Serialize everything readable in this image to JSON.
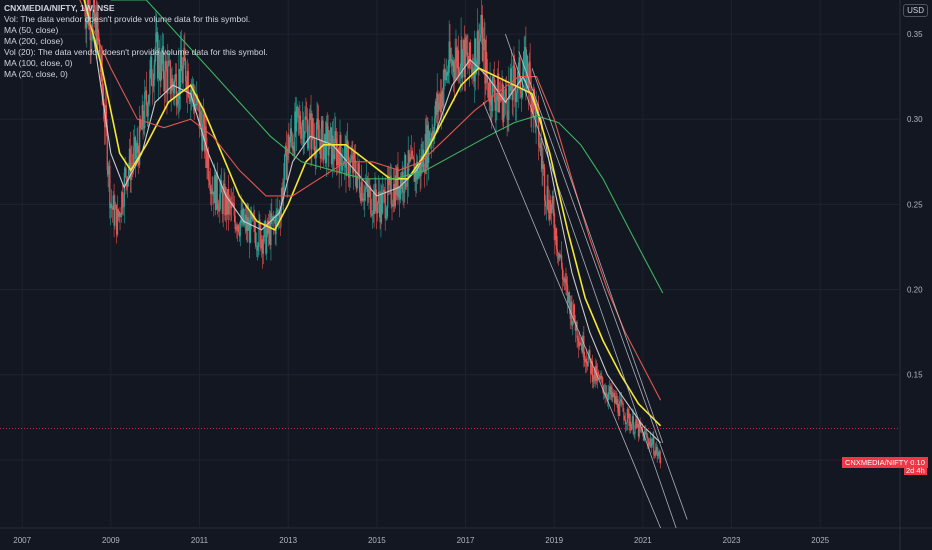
{
  "legend": {
    "symbol": "CNXMEDIA/NIFTY, 1W, NSE",
    "lines": [
      "Vol: The data vendor doesn't provide volume data for this symbol.",
      "MA (50, close)",
      "MA (200, close)",
      "Vol (20): The data vendor doesn't provide volume data for this symbol.",
      "MA (100, close, 0)",
      "MA (20, close, 0)"
    ]
  },
  "currency": "USD",
  "price_tag": {
    "label": "CNXMEDIA/NIFTY",
    "value": "0.10",
    "countdown": "2d 4h"
  },
  "colors": {
    "background": "#131722",
    "grid": "#1f2330",
    "axis_text": "#b2b5be",
    "candle_up": "#26a69a",
    "candle_down": "#ef5350",
    "ma20": "#c9c9c9",
    "ma50": "#f5e733",
    "ma100": "#e0574f",
    "ma200": "#3fb25f",
    "channel": "#d1d4dc",
    "price_line": "#f23645"
  },
  "chart_data": {
    "type": "candlestick",
    "symbol": "CNXMEDIA/NIFTY",
    "interval": "1W",
    "exchange": "NSE",
    "x_ticks": [
      "2007",
      "2009",
      "2011",
      "2013",
      "2015",
      "2017",
      "2019",
      "2021",
      "2023",
      "2025"
    ],
    "y_ticks": [
      "0.35",
      "0.30",
      "0.25",
      "0.20",
      "0.15",
      "0.10"
    ],
    "xlim": [
      2006.5,
      2026.8
    ],
    "ylim": [
      0.06,
      0.37
    ],
    "y_axis_position": "right",
    "grid": true,
    "last_price": 0.1,
    "close_path": [
      [
        2008.4,
        0.37
      ],
      [
        2008.7,
        0.35
      ],
      [
        2008.9,
        0.29
      ],
      [
        2009.0,
        0.25
      ],
      [
        2009.15,
        0.24
      ],
      [
        2009.35,
        0.27
      ],
      [
        2009.6,
        0.28
      ],
      [
        2009.8,
        0.31
      ],
      [
        2010.0,
        0.34
      ],
      [
        2010.15,
        0.33
      ],
      [
        2010.4,
        0.32
      ],
      [
        2010.7,
        0.33
      ],
      [
        2010.9,
        0.31
      ],
      [
        2011.1,
        0.29
      ],
      [
        2011.3,
        0.26
      ],
      [
        2011.6,
        0.25
      ],
      [
        2011.9,
        0.24
      ],
      [
        2012.2,
        0.235
      ],
      [
        2012.5,
        0.23
      ],
      [
        2012.8,
        0.245
      ],
      [
        2013.0,
        0.285
      ],
      [
        2013.3,
        0.3
      ],
      [
        2013.6,
        0.29
      ],
      [
        2013.9,
        0.285
      ],
      [
        2014.2,
        0.28
      ],
      [
        2014.5,
        0.27
      ],
      [
        2014.8,
        0.255
      ],
      [
        2015.1,
        0.25
      ],
      [
        2015.4,
        0.26
      ],
      [
        2015.7,
        0.27
      ],
      [
        2015.95,
        0.27
      ],
      [
        2016.3,
        0.3
      ],
      [
        2016.6,
        0.33
      ],
      [
        2016.9,
        0.34
      ],
      [
        2017.1,
        0.33
      ],
      [
        2017.35,
        0.35
      ],
      [
        2017.5,
        0.32
      ],
      [
        2017.7,
        0.315
      ],
      [
        2017.9,
        0.31
      ],
      [
        2018.1,
        0.32
      ],
      [
        2018.4,
        0.33
      ],
      [
        2018.6,
        0.3
      ],
      [
        2018.8,
        0.26
      ],
      [
        2019.0,
        0.24
      ],
      [
        2019.25,
        0.2
      ],
      [
        2019.6,
        0.17
      ],
      [
        2019.9,
        0.15
      ],
      [
        2020.2,
        0.14
      ],
      [
        2020.5,
        0.13
      ],
      [
        2020.8,
        0.12
      ],
      [
        2021.0,
        0.115
      ],
      [
        2021.2,
        0.11
      ],
      [
        2021.4,
        0.1
      ]
    ],
    "series": [
      {
        "name": "MA (20, close, 0)",
        "color": "#c9c9c9",
        "points": [
          [
            2008.6,
            0.35
          ],
          [
            2009.0,
            0.28
          ],
          [
            2009.3,
            0.26
          ],
          [
            2009.7,
            0.28
          ],
          [
            2010.0,
            0.31
          ],
          [
            2010.4,
            0.32
          ],
          [
            2010.8,
            0.315
          ],
          [
            2011.2,
            0.28
          ],
          [
            2011.6,
            0.255
          ],
          [
            2012.0,
            0.24
          ],
          [
            2012.4,
            0.235
          ],
          [
            2012.8,
            0.245
          ],
          [
            2013.1,
            0.275
          ],
          [
            2013.5,
            0.29
          ],
          [
            2014.0,
            0.285
          ],
          [
            2014.5,
            0.27
          ],
          [
            2015.0,
            0.255
          ],
          [
            2015.5,
            0.26
          ],
          [
            2015.9,
            0.27
          ],
          [
            2016.3,
            0.29
          ],
          [
            2016.7,
            0.32
          ],
          [
            2017.1,
            0.335
          ],
          [
            2017.5,
            0.325
          ],
          [
            2017.9,
            0.31
          ],
          [
            2018.3,
            0.325
          ],
          [
            2018.7,
            0.3
          ],
          [
            2019.0,
            0.26
          ],
          [
            2019.4,
            0.21
          ],
          [
            2019.8,
            0.175
          ],
          [
            2020.2,
            0.15
          ],
          [
            2020.6,
            0.135
          ],
          [
            2021.0,
            0.12
          ],
          [
            2021.4,
            0.11
          ]
        ]
      },
      {
        "name": "MA (50, close)",
        "color": "#f5e733",
        "points": [
          [
            2008.3,
            0.38
          ],
          [
            2008.8,
            0.33
          ],
          [
            2009.2,
            0.28
          ],
          [
            2009.45,
            0.27
          ],
          [
            2009.8,
            0.285
          ],
          [
            2010.3,
            0.31
          ],
          [
            2010.8,
            0.32
          ],
          [
            2011.1,
            0.305
          ],
          [
            2011.5,
            0.28
          ],
          [
            2011.9,
            0.255
          ],
          [
            2012.3,
            0.24
          ],
          [
            2012.7,
            0.235
          ],
          [
            2013.0,
            0.25
          ],
          [
            2013.4,
            0.275
          ],
          [
            2013.8,
            0.285
          ],
          [
            2014.3,
            0.285
          ],
          [
            2014.8,
            0.275
          ],
          [
            2015.3,
            0.265
          ],
          [
            2015.7,
            0.265
          ],
          [
            2016.1,
            0.28
          ],
          [
            2016.5,
            0.3
          ],
          [
            2016.9,
            0.32
          ],
          [
            2017.3,
            0.33
          ],
          [
            2017.7,
            0.325
          ],
          [
            2018.1,
            0.32
          ],
          [
            2018.5,
            0.315
          ],
          [
            2018.9,
            0.28
          ],
          [
            2019.3,
            0.235
          ],
          [
            2019.7,
            0.195
          ],
          [
            2020.1,
            0.17
          ],
          [
            2020.5,
            0.15
          ],
          [
            2020.9,
            0.133
          ],
          [
            2021.4,
            0.12
          ]
        ]
      },
      {
        "name": "MA (100, close, 0)",
        "color": "#e0574f",
        "points": [
          [
            2008.3,
            0.37
          ],
          [
            2009.0,
            0.33
          ],
          [
            2009.6,
            0.3
          ],
          [
            2010.2,
            0.295
          ],
          [
            2010.8,
            0.3
          ],
          [
            2011.3,
            0.29
          ],
          [
            2011.9,
            0.27
          ],
          [
            2012.5,
            0.255
          ],
          [
            2013.1,
            0.255
          ],
          [
            2013.7,
            0.265
          ],
          [
            2014.3,
            0.275
          ],
          [
            2014.9,
            0.275
          ],
          [
            2015.5,
            0.27
          ],
          [
            2016.0,
            0.275
          ],
          [
            2016.6,
            0.29
          ],
          [
            2017.2,
            0.305
          ],
          [
            2017.7,
            0.315
          ],
          [
            2018.2,
            0.325
          ],
          [
            2018.6,
            0.325
          ],
          [
            2019.0,
            0.3
          ],
          [
            2019.4,
            0.265
          ],
          [
            2019.8,
            0.23
          ],
          [
            2020.2,
            0.2
          ],
          [
            2020.6,
            0.175
          ],
          [
            2021.0,
            0.155
          ],
          [
            2021.4,
            0.135
          ]
        ]
      },
      {
        "name": "MA (200, close)",
        "color": "#3fb25f",
        "points": [
          [
            2009.0,
            0.37
          ],
          [
            2009.8,
            0.37
          ],
          [
            2010.5,
            0.35
          ],
          [
            2011.2,
            0.33
          ],
          [
            2011.9,
            0.31
          ],
          [
            2012.6,
            0.29
          ],
          [
            2013.3,
            0.275
          ],
          [
            2014.0,
            0.27
          ],
          [
            2014.7,
            0.265
          ],
          [
            2015.4,
            0.265
          ],
          [
            2016.1,
            0.27
          ],
          [
            2016.8,
            0.28
          ],
          [
            2017.5,
            0.29
          ],
          [
            2018.1,
            0.298
          ],
          [
            2018.6,
            0.302
          ],
          [
            2019.1,
            0.298
          ],
          [
            2019.6,
            0.285
          ],
          [
            2020.1,
            0.265
          ],
          [
            2020.6,
            0.24
          ],
          [
            2021.0,
            0.22
          ],
          [
            2021.45,
            0.198
          ]
        ]
      }
    ],
    "channel_lines": [
      [
        [
          2017.9,
          0.35
        ],
        [
          2021.75,
          0.06
        ]
      ],
      [
        [
          2018.2,
          0.34
        ],
        [
          2022.0,
          0.065
        ]
      ],
      [
        [
          2017.4,
          0.31
        ],
        [
          2021.4,
          0.06
        ]
      ],
      [
        [
          2018.5,
          0.33
        ],
        [
          2021.45,
          0.11
        ]
      ]
    ]
  }
}
